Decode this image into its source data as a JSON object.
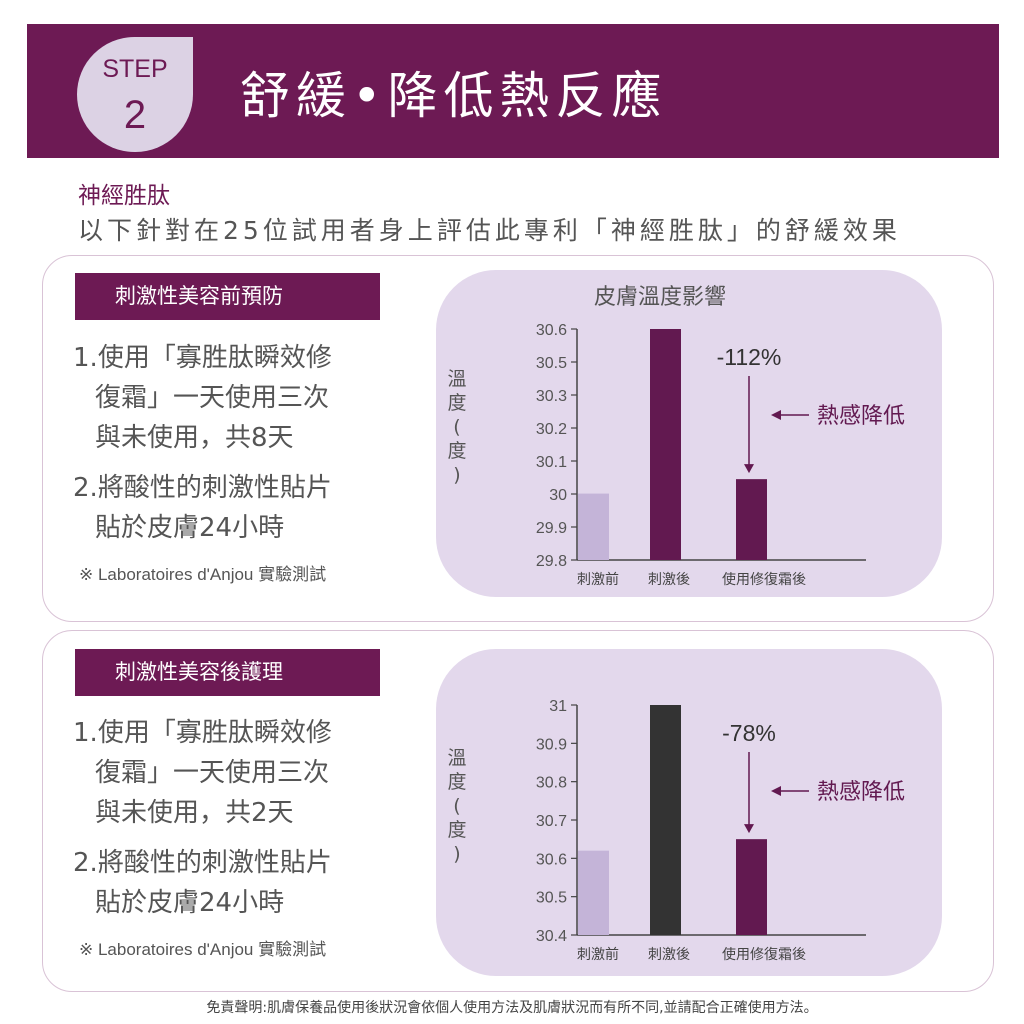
{
  "header": {
    "step_label": "STEP",
    "step_number": "2",
    "title": "舒緩•降低熱反應",
    "background_color": "#6d1a54"
  },
  "intro": {
    "title": "神經胜肽",
    "description": "以下針對在25位試用者身上評估此專利「神經胜肽」的舒緩效果"
  },
  "sections": [
    {
      "label": "刺激性美容前預防",
      "items": [
        {
          "num": "1.",
          "lines": [
            "使用「寡胜肽瞬效修",
            "復霜」一天使用三次",
            "與未使用，共8天"
          ]
        },
        {
          "num": "2.",
          "lines": [
            "將酸性的刺激性貼片",
            "貼於皮膚24小時"
          ]
        }
      ],
      "note": "※ Laboratoires d'Anjou 實驗測試"
    },
    {
      "label": "刺激性美容後護理",
      "items": [
        {
          "num": "1.",
          "lines": [
            "使用「寡胜肽瞬效修",
            "復霜」一天使用三次",
            "與未使用，共2天"
          ]
        },
        {
          "num": "2.",
          "lines": [
            "將酸性的刺激性貼片",
            "貼於皮膚24小時"
          ]
        }
      ],
      "note": "※ Laboratoires d'Anjou 實驗測試"
    }
  ],
  "chart_data": [
    {
      "type": "bar",
      "title": "皮膚溫度影響",
      "ylabel": "溫度(度)",
      "categories": [
        "刺激前",
        "刺激後",
        "使用修復霜後"
      ],
      "values": [
        30.03,
        30.6,
        30.08
      ],
      "yticks": [
        "30.6",
        "30.5",
        "30.3",
        "30.2",
        "30.1",
        "30",
        "29.9",
        "29.8"
      ],
      "ylim": [
        29.8,
        30.6
      ],
      "bar_colors": [
        "#c4b4d8",
        "#621950",
        "#621950"
      ],
      "annotation": {
        "value": "-112%",
        "label": "熱感降低"
      }
    },
    {
      "type": "bar",
      "title": "",
      "ylabel": "溫度(度)",
      "categories": [
        "刺激前",
        "刺激後",
        "使用修復霜後"
      ],
      "values": [
        30.62,
        31.0,
        30.65
      ],
      "yticks": [
        "31",
        "30.9",
        "30.8",
        "30.7",
        "30.6",
        "30.5",
        "30.4"
      ],
      "ylim": [
        30.4,
        31.0
      ],
      "bar_colors": [
        "#c4b4d8",
        "#333333",
        "#621950"
      ],
      "annotation": {
        "value": "-78%",
        "label": "熱感降低"
      }
    }
  ],
  "footer": "免責聲明:肌膚保養品使用後狀況會依個人使用方法及肌膚狀況而有所不同,並請配合正確使用方法。"
}
